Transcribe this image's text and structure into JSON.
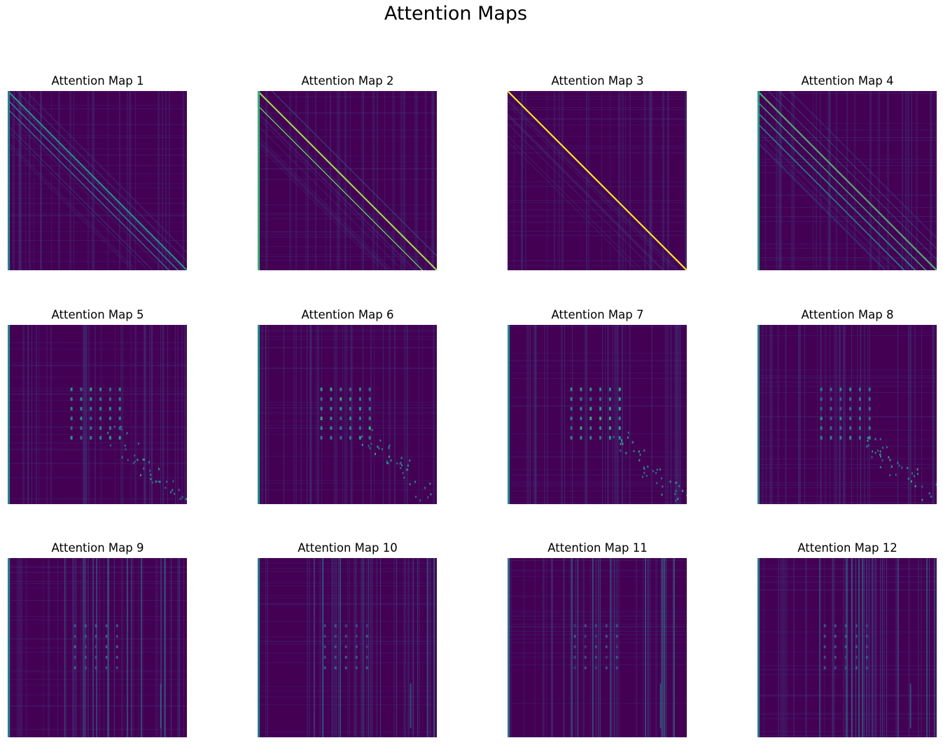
{
  "figure": {
    "title": "Attention Maps"
  },
  "chart_data": {
    "type": "heatmap",
    "title": "Attention Maps",
    "colormap": "viridis",
    "background_color": "#440154",
    "grid": false,
    "axes_visible": false,
    "layout": {
      "rows": 3,
      "cols": 4
    },
    "panels": [
      {
        "title": "Attention Map 1",
        "pattern": "diagonal",
        "diagonal_offsets": [
          0,
          0.05,
          0.1
        ],
        "intensity": 0.5,
        "first_column_highlight": true
      },
      {
        "title": "Attention Map 2",
        "pattern": "diagonal",
        "diagonal_offsets": [
          0,
          0.08
        ],
        "intensity": 0.85,
        "first_column_highlight": true
      },
      {
        "title": "Attention Map 3",
        "pattern": "diagonal",
        "diagonal_offsets": [
          0
        ],
        "intensity": 1.0,
        "first_column_highlight": false
      },
      {
        "title": "Attention Map 4",
        "pattern": "diagonal",
        "diagonal_offsets": [
          0,
          0.06,
          0.12,
          0.18
        ],
        "intensity": 0.7,
        "first_column_highlight": true
      },
      {
        "title": "Attention Map 5",
        "pattern": "block",
        "intensity": 0.55,
        "first_column_highlight": true
      },
      {
        "title": "Attention Map 6",
        "pattern": "block",
        "intensity": 0.6,
        "first_column_highlight": true
      },
      {
        "title": "Attention Map 7",
        "pattern": "block",
        "intensity": 0.6,
        "first_column_highlight": true
      },
      {
        "title": "Attention Map 8",
        "pattern": "block",
        "intensity": 0.5,
        "first_column_highlight": true
      },
      {
        "title": "Attention Map 9",
        "pattern": "stripes",
        "intensity": 0.5,
        "first_column_highlight": true
      },
      {
        "title": "Attention Map 10",
        "pattern": "stripes",
        "intensity": 0.45,
        "first_column_highlight": true
      },
      {
        "title": "Attention Map 11",
        "pattern": "stripes",
        "intensity": 0.4,
        "first_column_highlight": true
      },
      {
        "title": "Attention Map 12",
        "pattern": "stripes",
        "intensity": 0.45,
        "first_column_highlight": true
      }
    ]
  }
}
